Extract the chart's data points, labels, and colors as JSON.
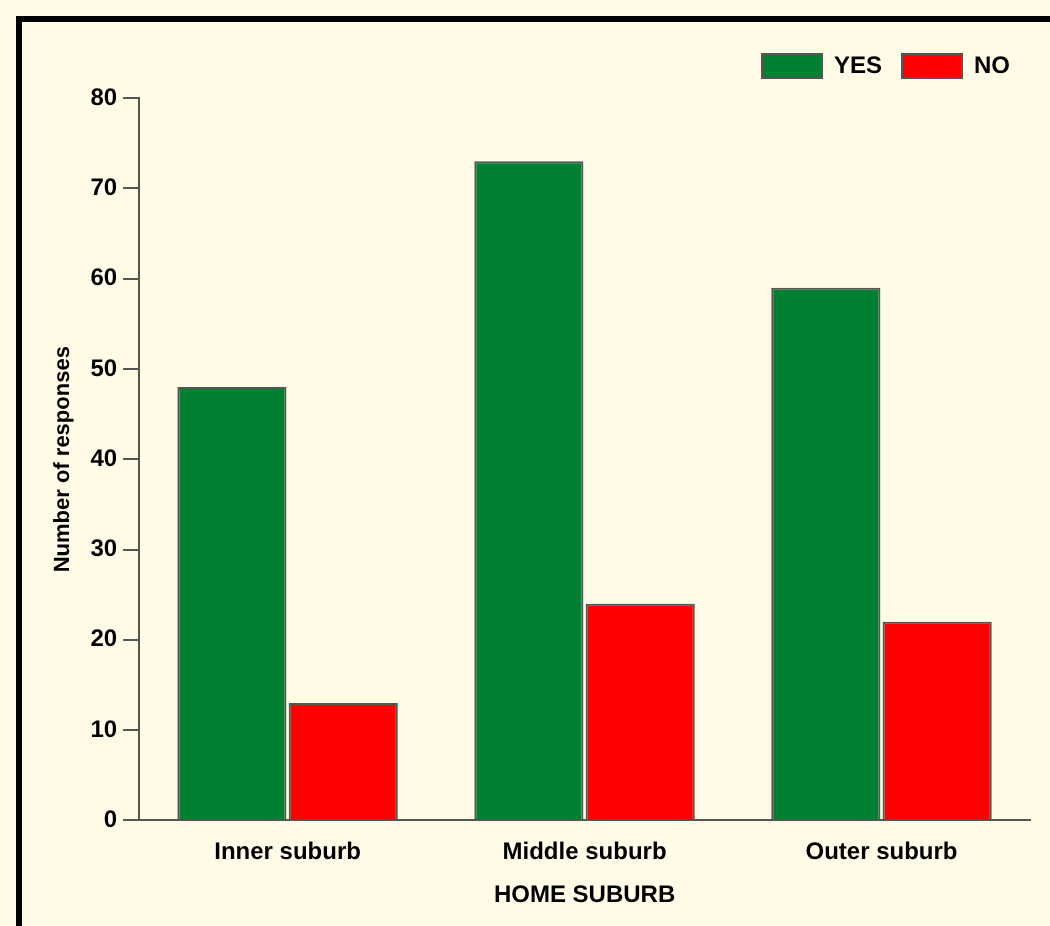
{
  "chart_data": {
    "type": "bar",
    "xlabel": "HOME SUBURB",
    "ylabel": "Number of responses",
    "categories": [
      "Inner suburb",
      "Middle suburb",
      "Outer suburb"
    ],
    "series": [
      {
        "name": "YES",
        "color": "#008030",
        "values": [
          48,
          73,
          59
        ]
      },
      {
        "name": "NO",
        "color": "#ff0000",
        "values": [
          13,
          24,
          22
        ]
      }
    ],
    "ylim": [
      0,
      80
    ],
    "yticks": [
      0,
      10,
      20,
      30,
      40,
      50,
      60,
      70,
      80
    ],
    "grid": false,
    "legend": "top right"
  }
}
